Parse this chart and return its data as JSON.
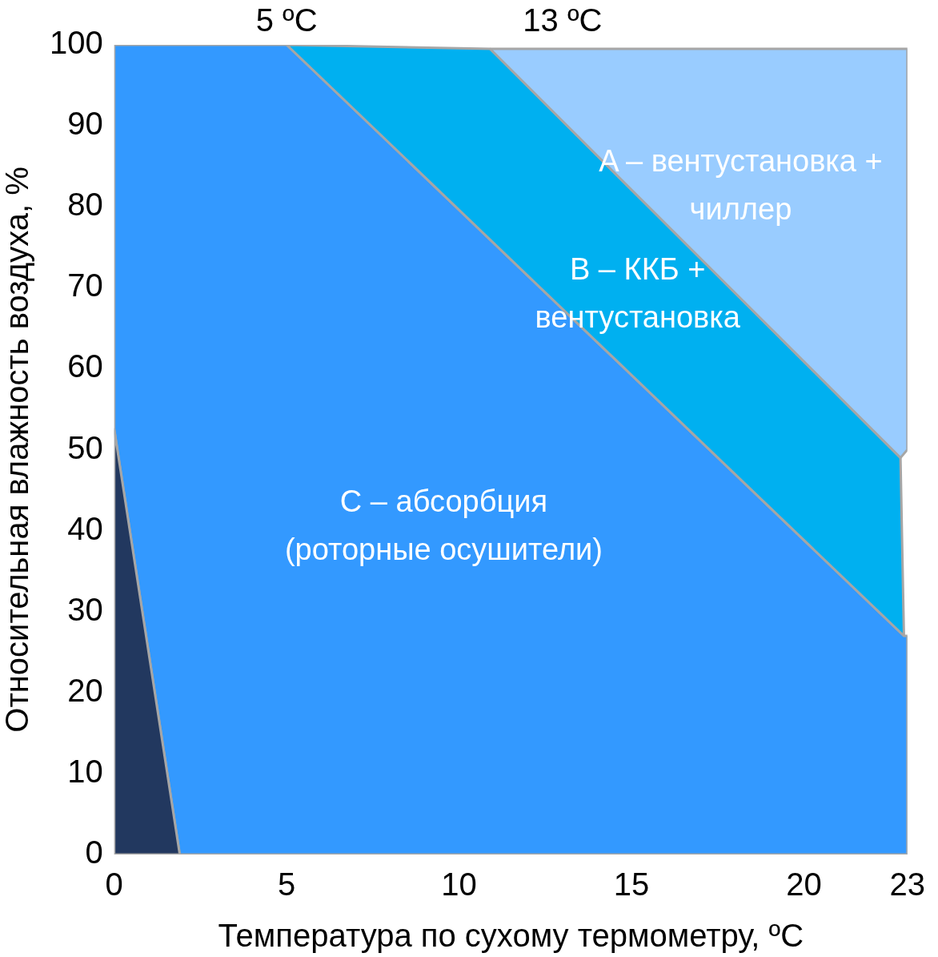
{
  "chart_data": {
    "type": "area",
    "xlabel": "Температура по сухому термометру, ºC",
    "ylabel": "Относительная влажность воздуха, %",
    "xlim": [
      0,
      23
    ],
    "xticks": [
      0,
      5,
      10,
      15,
      20,
      23
    ],
    "x2lim": [
      0,
      23
    ],
    "x2ticks": [
      {
        "value": 5,
        "label": "5 ºC"
      },
      {
        "value": 13,
        "label": "13 ºC"
      }
    ],
    "ylim": [
      0,
      100
    ],
    "yticks": [
      0,
      10,
      20,
      30,
      40,
      50,
      60,
      70,
      80,
      90,
      100
    ],
    "grid": false,
    "series": [
      {
        "name": "C – абсорбция (роторные осушители)",
        "color": "#3399ff",
        "x": [
          0,
          0,
          5,
          22.9,
          23,
          23,
          1.9,
          0
        ],
        "values": [
          52.5,
          100,
          100,
          27,
          27,
          0,
          0,
          52.5
        ]
      },
      {
        "color": "#22385f",
        "x": [
          0,
          0,
          1.9,
          0
        ],
        "values": [
          0,
          52.5,
          0,
          0
        ]
      },
      {
        "name": "B – ККБ + вентустановка",
        "color": "#00b0f0",
        "x": [
          5,
          10.9,
          22.8,
          22.9,
          5
        ],
        "values": [
          100,
          99.5,
          49,
          27,
          100
        ]
      },
      {
        "name": "A – вентустановка + чиллер",
        "color": "#99ccff",
        "x": [
          10.9,
          23,
          23,
          22.8,
          10.9
        ],
        "values": [
          99.5,
          99.5,
          50,
          49,
          99.5
        ]
      }
    ]
  }
}
